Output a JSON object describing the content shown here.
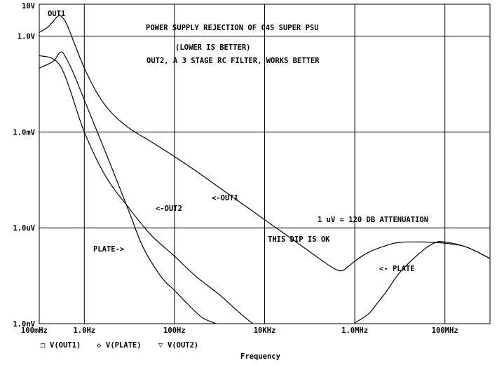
{
  "chart_data": {
    "type": "line",
    "x_scale": "log",
    "y_scale": "log",
    "xlim": [
      0.1,
      1000000000
    ],
    "ylim": [
      1e-09,
      10
    ],
    "grid": true,
    "xlabel": "Frequency",
    "ylabel": "",
    "x_ticks": [
      {
        "value": 0.1,
        "label": "100mHz"
      },
      {
        "value": 1,
        "label": "1.0Hz"
      },
      {
        "value": 100,
        "label": "100Hz"
      },
      {
        "value": 10000,
        "label": "10KHz"
      },
      {
        "value": 1000000,
        "label": "1.0MHz"
      },
      {
        "value": 100000000,
        "label": "100MHz"
      }
    ],
    "y_ticks": [
      {
        "value": 10,
        "label": "10V"
      },
      {
        "value": 1,
        "label": "1.0V"
      },
      {
        "value": 0.001,
        "label": "1.0mV"
      },
      {
        "value": 1e-06,
        "label": "1.0uV"
      },
      {
        "value": 1e-09,
        "label": "1.0nV"
      }
    ],
    "annotations": [
      "POWER SUPPLY REJECTION OF C4S SUPER PSU",
      "(LOWER IS BETTER)",
      "OUT2, A 3 STAGE RC FILTER, WORKS BETTER",
      "1 uV = 120 DB ATTENUATION",
      "THIS DIP IS OK",
      "OUT1",
      "<-OUT1",
      "<-OUT2",
      "PLATE->",
      "<- PLATE"
    ],
    "legend": [
      {
        "marker": "□",
        "label": "V(OUT1)"
      },
      {
        "marker": "◇",
        "label": "V(PLATE)"
      },
      {
        "marker": "▽",
        "label": "V(OUT2)"
      }
    ],
    "series": [
      {
        "name": "V(OUT1)",
        "x": [
          0.1,
          0.16,
          0.25,
          0.3,
          0.4,
          0.6,
          1,
          2,
          4,
          10,
          30,
          100,
          300,
          1000,
          3000,
          10000,
          30000,
          100000,
          300000,
          500000,
          700000,
          1000000,
          2000000,
          5000000,
          10000000,
          30000000,
          100000000,
          300000000,
          1000000000
        ],
        "y": [
          1.3,
          2.0,
          4.0,
          4.3,
          2.5,
          0.6,
          0.1,
          0.015,
          0.004,
          0.0013,
          0.0005,
          0.00017,
          6e-05,
          1.8e-05,
          6e-06,
          1.8e-06,
          6e-07,
          1.8e-07,
          6e-08,
          4.5e-08,
          6e-08,
          9e-08,
          1.7e-07,
          2.8e-07,
          3.5e-07,
          3.6e-07,
          3.3e-07,
          2.5e-07,
          1.1e-07
        ]
      },
      {
        "name": "V(PLATE)",
        "x": [
          0.1,
          0.3,
          1,
          3,
          10,
          30,
          100,
          300,
          1000,
          3000,
          10000,
          100000,
          1000000,
          2000000,
          3000000,
          5000000,
          10000000,
          30000000,
          60000000,
          100000000,
          300000000,
          1000000000
        ],
        "y": [
          0.25,
          0.11,
          0.001,
          4e-05,
          4e-06,
          6e-07,
          1.3e-07,
          3e-08,
          8e-09,
          2e-09,
          5e-10,
          null,
          1.05e-09,
          2e-09,
          4e-09,
          1e-08,
          4e-08,
          1.8e-07,
          3.4e-07,
          3.6e-07,
          2.5e-07,
          1.1e-07
        ]
      },
      {
        "name": "V(OUT2)",
        "x": [
          0.1,
          0.2,
          0.3,
          0.4,
          0.6,
          1,
          2,
          4,
          10,
          20,
          50,
          100,
          200,
          400,
          700,
          1000
        ],
        "y": [
          0.1,
          0.16,
          0.32,
          0.2,
          0.06,
          0.01,
          0.0009,
          8e-05,
          3e-06,
          2.5e-07,
          3e-08,
          1.1e-08,
          4e-09,
          1.6e-09,
          1.1e-09,
          9e-10
        ]
      }
    ]
  }
}
